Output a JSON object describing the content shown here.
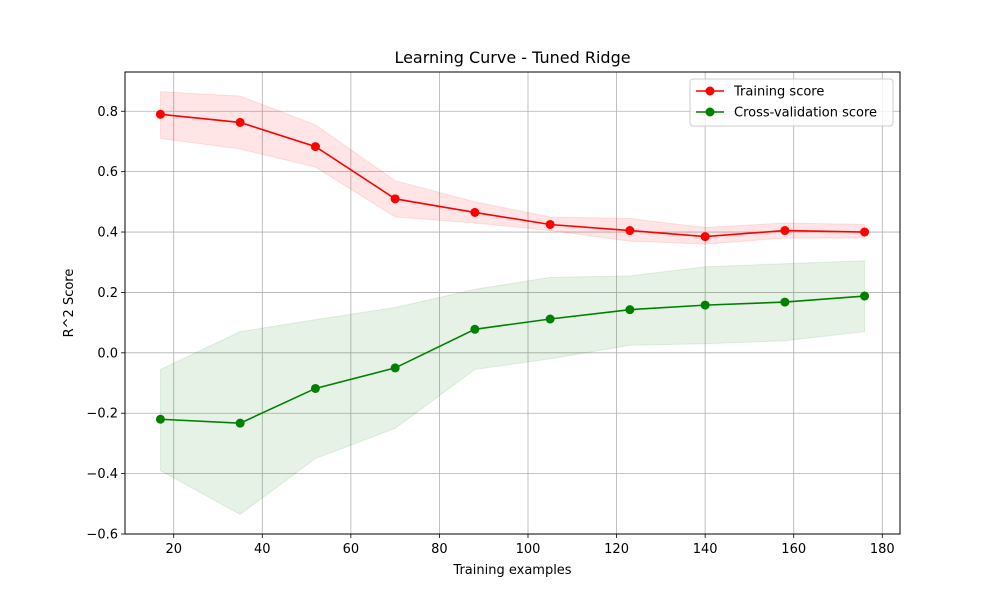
{
  "chart_data": {
    "type": "line",
    "title": "Learning Curve - Tuned Ridge",
    "xlabel": "Training examples",
    "ylabel": "R^2 Score",
    "xlim": [
      9,
      184
    ],
    "ylim": [
      -0.6,
      0.93
    ],
    "xticks": [
      20,
      40,
      60,
      80,
      100,
      120,
      140,
      160,
      180
    ],
    "yticks": [
      -0.6,
      -0.4,
      -0.2,
      0.0,
      0.2,
      0.4,
      0.6,
      0.8
    ],
    "grid": true,
    "legend_position": "top-right",
    "x": [
      17,
      35,
      52,
      70,
      88,
      105,
      123,
      140,
      158,
      176
    ],
    "series": [
      {
        "name": "Training score",
        "color": "#ff0000",
        "band_color": "#ff0000",
        "values": [
          0.79,
          0.763,
          0.683,
          0.51,
          0.465,
          0.425,
          0.405,
          0.385,
          0.405,
          0.4
        ],
        "band_upper": [
          0.865,
          0.85,
          0.755,
          0.57,
          0.5,
          0.45,
          0.445,
          0.415,
          0.43,
          0.425
        ],
        "band_lower": [
          0.71,
          0.675,
          0.615,
          0.45,
          0.43,
          0.405,
          0.37,
          0.36,
          0.38,
          0.38
        ]
      },
      {
        "name": "Cross-validation score",
        "color": "#008000",
        "band_color": "#008000",
        "values": [
          -0.22,
          -0.233,
          -0.118,
          -0.05,
          0.078,
          0.112,
          0.143,
          0.158,
          0.168,
          0.188
        ],
        "band_upper": [
          -0.055,
          0.07,
          0.11,
          0.15,
          0.21,
          0.25,
          0.255,
          0.285,
          0.295,
          0.305
        ],
        "band_lower": [
          -0.39,
          -0.535,
          -0.35,
          -0.25,
          -0.055,
          -0.02,
          0.025,
          0.03,
          0.04,
          0.07
        ]
      }
    ]
  }
}
